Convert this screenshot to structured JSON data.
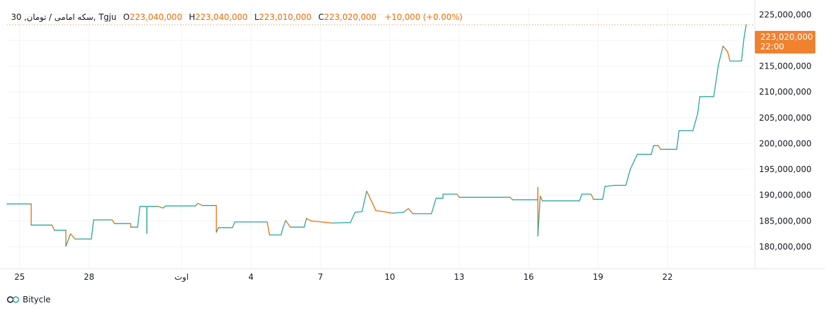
{
  "legend": {
    "symbol": "30 ,سکه امامی / تومان",
    "source": "Tgju",
    "open_label": "O",
    "open": "223,040,000",
    "high_label": "H",
    "high": "223,040,000",
    "low_label": "L",
    "low": "223,010,000",
    "close_label": "C",
    "close": "223,020,000",
    "change": "+10,000 (+0.00%)"
  },
  "price_badge": {
    "price": "223,020,000",
    "time": "22:00"
  },
  "footer": {
    "brand": "Bitycle"
  },
  "colors": {
    "up": "#26a69a",
    "down": "#ef6c00",
    "badge": "#f0812e",
    "grid": "#f0f3fa"
  },
  "chart_data": {
    "type": "line",
    "title": "",
    "xlabel": "",
    "ylabel": "",
    "ylim": [
      176000000,
      226500000
    ],
    "y_ticks": [
      "225,000,000",
      "220,000,000",
      "215,000,000",
      "210,000,000",
      "205,000,000",
      "200,000,000",
      "195,000,000",
      "190,000,000",
      "185,000,000",
      "180,000,000"
    ],
    "y_tick_values": [
      225000000,
      220000000,
      215000000,
      210000000,
      205000000,
      200000000,
      195000000,
      190000000,
      185000000,
      180000000
    ],
    "x_ticks": [
      "25",
      "28",
      "اوت",
      "4",
      "7",
      "10",
      "13",
      "16",
      "19",
      "22"
    ],
    "x_tick_days": [
      0,
      3,
      7,
      10,
      13,
      16,
      19,
      22,
      25,
      28
    ],
    "x_range_days": [
      -0.55,
      31.6
    ],
    "last_price": 223020000,
    "series": [
      {
        "points": [
          [
            -0.55,
            188300000
          ],
          [
            0.5,
            188300000
          ],
          [
            0.5,
            184200000
          ],
          [
            1.4,
            184200000
          ],
          [
            1.5,
            183200000
          ],
          [
            2.0,
            183200000
          ],
          [
            2.0,
            180100000
          ],
          [
            2.2,
            182500000
          ],
          [
            2.4,
            181500000
          ],
          [
            3.1,
            181500000
          ],
          [
            3.2,
            185200000
          ],
          [
            4.0,
            185200000
          ],
          [
            4.1,
            184500000
          ],
          [
            4.8,
            184500000
          ],
          [
            4.8,
            183800000
          ],
          [
            5.1,
            183800000
          ],
          [
            5.2,
            187800000
          ],
          [
            5.5,
            187800000
          ],
          [
            5.5,
            182600000
          ],
          [
            5.5,
            187800000
          ],
          [
            6.0,
            187800000
          ],
          [
            6.2,
            187500000
          ],
          [
            6.3,
            187900000
          ],
          [
            7.6,
            187900000
          ],
          [
            7.7,
            188400000
          ],
          [
            7.9,
            188000000
          ],
          [
            8.5,
            188000000
          ],
          [
            8.5,
            182800000
          ],
          [
            8.6,
            183700000
          ],
          [
            9.2,
            183700000
          ],
          [
            9.3,
            184800000
          ],
          [
            10.7,
            184800000
          ],
          [
            10.8,
            182300000
          ],
          [
            11.3,
            182300000
          ],
          [
            11.4,
            183900000
          ],
          [
            11.5,
            185100000
          ],
          [
            11.7,
            183800000
          ],
          [
            12.3,
            183800000
          ],
          [
            12.4,
            185500000
          ],
          [
            12.6,
            185000000
          ],
          [
            13.5,
            184600000
          ],
          [
            14.3,
            184700000
          ],
          [
            14.5,
            186700000
          ],
          [
            14.8,
            186800000
          ],
          [
            15.0,
            190800000
          ],
          [
            15.2,
            188900000
          ],
          [
            15.4,
            187000000
          ],
          [
            15.9,
            186700000
          ],
          [
            16.1,
            186500000
          ],
          [
            16.6,
            186700000
          ],
          [
            16.8,
            187400000
          ],
          [
            17.0,
            186400000
          ],
          [
            17.8,
            186400000
          ],
          [
            18.0,
            189400000
          ],
          [
            18.3,
            189400000
          ],
          [
            18.3,
            190200000
          ],
          [
            18.9,
            190200000
          ],
          [
            19.0,
            189600000
          ],
          [
            21.2,
            189600000
          ],
          [
            21.3,
            189100000
          ],
          [
            22.4,
            189100000
          ],
          [
            22.4,
            191500000
          ],
          [
            22.4,
            182100000
          ],
          [
            22.5,
            189800000
          ],
          [
            22.6,
            188900000
          ],
          [
            24.2,
            188900000
          ],
          [
            24.3,
            190200000
          ],
          [
            24.7,
            190200000
          ],
          [
            24.8,
            189200000
          ],
          [
            25.2,
            189200000
          ],
          [
            25.3,
            191700000
          ],
          [
            25.7,
            191900000
          ],
          [
            26.2,
            191900000
          ],
          [
            26.4,
            195100000
          ],
          [
            26.7,
            197900000
          ],
          [
            27.3,
            197900000
          ],
          [
            27.4,
            199600000
          ],
          [
            27.6,
            199600000
          ],
          [
            27.7,
            198900000
          ],
          [
            28.4,
            198900000
          ],
          [
            28.5,
            202500000
          ],
          [
            29.1,
            202500000
          ],
          [
            29.3,
            205700000
          ],
          [
            29.4,
            209100000
          ],
          [
            30.0,
            209100000
          ],
          [
            30.2,
            215200000
          ],
          [
            30.4,
            218900000
          ],
          [
            30.6,
            217800000
          ],
          [
            30.7,
            216000000
          ],
          [
            31.2,
            216000000
          ],
          [
            31.3,
            220200000
          ],
          [
            31.4,
            223020000
          ]
        ]
      }
    ]
  }
}
